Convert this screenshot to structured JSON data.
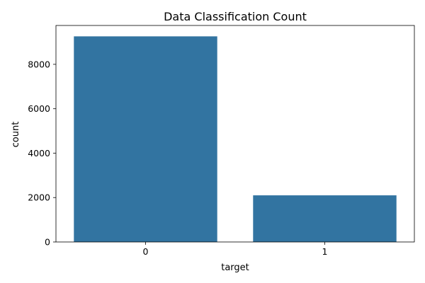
{
  "chart_data": {
    "type": "bar",
    "title": "Data Classification Count",
    "xlabel": "target",
    "ylabel": "count",
    "categories": [
      "0",
      "1"
    ],
    "values": [
      9260,
      2100
    ],
    "ylim": [
      0,
      9750
    ],
    "yticks": [
      0,
      2000,
      4000,
      6000,
      8000
    ],
    "grid": false,
    "legend": "none",
    "bar_color": "#3274a1",
    "axis_color": "#000000"
  }
}
